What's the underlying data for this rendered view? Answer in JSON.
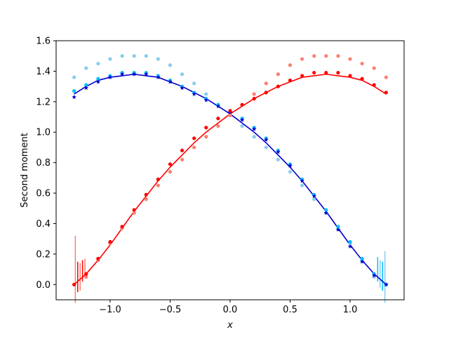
{
  "chart_data": {
    "type": "scatter",
    "title": "",
    "xlabel": "x",
    "ylabel": "Second moment",
    "xlim": [
      -1.45,
      1.45
    ],
    "ylim": [
      -0.1,
      1.6
    ],
    "xticks": [
      -1.0,
      -0.5,
      0.0,
      0.5,
      1.0
    ],
    "xtick_labels": [
      "−1.0",
      "−0.5",
      "0.0",
      "0.5",
      "1.0"
    ],
    "yticks": [
      0.0,
      0.2,
      0.4,
      0.6,
      0.8,
      1.0,
      1.2,
      1.4,
      1.6
    ],
    "ytick_labels": [
      "0.0",
      "0.2",
      "0.4",
      "0.6",
      "0.8",
      "1.0",
      "1.2",
      "1.4",
      "1.6"
    ],
    "grid": false,
    "legend": "none",
    "series": [
      {
        "color": "#87ceeb",
        "marker": "dot",
        "x": [
          -1.3,
          -1.2,
          -1.1,
          -1.0,
          -0.9,
          -0.8,
          -0.7,
          -0.6,
          -0.5,
          -0.4,
          -0.3,
          -0.2,
          -0.1,
          0.0,
          0.1,
          0.2,
          0.3,
          0.4,
          0.5,
          0.6,
          0.7,
          0.8,
          0.9,
          1.0,
          1.1,
          1.2,
          1.3
        ],
        "y": [
          1.36,
          1.42,
          1.45,
          1.48,
          1.5,
          1.5,
          1.5,
          1.48,
          1.44,
          1.38,
          1.32,
          1.25,
          1.18,
          1.11,
          1.04,
          0.97,
          0.9,
          0.82,
          0.74,
          0.65,
          0.56,
          0.47,
          0.37,
          0.27,
          0.16,
          0.05,
          0.0
        ]
      },
      {
        "color": "#00bfff",
        "marker": "dot",
        "x": [
          -1.3,
          -1.2,
          -1.1,
          -1.0,
          -0.9,
          -0.8,
          -0.7,
          -0.6,
          -0.5,
          -0.4,
          -0.3,
          -0.2,
          -0.1,
          0.0,
          0.1,
          0.2,
          0.3,
          0.4,
          0.5,
          0.6,
          0.7,
          0.8,
          0.9,
          1.0,
          1.1,
          1.2,
          1.3
        ],
        "y": [
          1.27,
          1.31,
          1.35,
          1.37,
          1.39,
          1.39,
          1.39,
          1.37,
          1.34,
          1.3,
          1.26,
          1.22,
          1.18,
          1.14,
          1.09,
          1.03,
          0.96,
          0.88,
          0.79,
          0.69,
          0.59,
          0.49,
          0.38,
          0.28,
          0.17,
          0.07,
          0.0
        ]
      },
      {
        "color": "#0000cd",
        "marker": "star",
        "x": [
          -1.3,
          -1.2,
          -1.1,
          -1.0,
          -0.9,
          -0.8,
          -0.7,
          -0.6,
          -0.5,
          -0.4,
          -0.3,
          -0.2,
          -0.1,
          0.0,
          0.1,
          0.2,
          0.3,
          0.4,
          0.5,
          0.6,
          0.7,
          0.8,
          0.9,
          1.0,
          1.1,
          1.2,
          1.3
        ],
        "y": [
          1.23,
          1.29,
          1.33,
          1.36,
          1.38,
          1.38,
          1.38,
          1.36,
          1.33,
          1.29,
          1.25,
          1.21,
          1.17,
          1.13,
          1.08,
          1.02,
          0.95,
          0.87,
          0.78,
          0.68,
          0.58,
          0.47,
          0.36,
          0.25,
          0.15,
          0.06,
          0.0
        ]
      },
      {
        "color": "#fa8072",
        "marker": "dot",
        "x": [
          -1.3,
          -1.2,
          -1.1,
          -1.0,
          -0.9,
          -0.8,
          -0.7,
          -0.6,
          -0.5,
          -0.4,
          -0.3,
          -0.2,
          -0.1,
          0.0,
          0.1,
          0.2,
          0.3,
          0.4,
          0.5,
          0.6,
          0.7,
          0.8,
          0.9,
          1.0,
          1.1,
          1.2,
          1.3
        ],
        "y": [
          0.0,
          0.05,
          0.16,
          0.27,
          0.37,
          0.47,
          0.56,
          0.65,
          0.74,
          0.82,
          0.9,
          0.97,
          1.04,
          1.11,
          1.18,
          1.25,
          1.32,
          1.38,
          1.44,
          1.48,
          1.5,
          1.5,
          1.5,
          1.48,
          1.45,
          1.42,
          1.36
        ]
      },
      {
        "color": "#ff0000",
        "marker": "dot",
        "x": [
          -1.3,
          -1.2,
          -1.1,
          -1.0,
          -0.9,
          -0.8,
          -0.7,
          -0.6,
          -0.5,
          -0.4,
          -0.3,
          -0.2,
          -0.1,
          0.0,
          0.1,
          0.2,
          0.3,
          0.4,
          0.5,
          0.6,
          0.7,
          0.8,
          0.9,
          1.0,
          1.1,
          1.2,
          1.3
        ],
        "y": [
          0.0,
          0.07,
          0.17,
          0.28,
          0.38,
          0.49,
          0.59,
          0.69,
          0.79,
          0.88,
          0.96,
          1.03,
          1.09,
          1.14,
          1.18,
          1.22,
          1.26,
          1.3,
          1.34,
          1.37,
          1.39,
          1.39,
          1.39,
          1.37,
          1.35,
          1.31,
          1.26
        ]
      }
    ],
    "fit_lines": [
      {
        "color": "#0000cd",
        "x": [
          -1.3,
          -1.2,
          -1.1,
          -1.0,
          -0.9,
          -0.8,
          -0.7,
          -0.6,
          -0.5,
          -0.4,
          -0.3,
          -0.2,
          -0.1,
          0.0,
          0.1,
          0.2,
          0.3,
          0.4,
          0.5,
          0.6,
          0.7,
          0.8,
          0.9,
          1.0,
          1.1,
          1.2,
          1.3
        ],
        "y": [
          1.25,
          1.3,
          1.34,
          1.36,
          1.37,
          1.38,
          1.37,
          1.36,
          1.33,
          1.3,
          1.26,
          1.22,
          1.17,
          1.12,
          1.06,
          1.0,
          0.93,
          0.85,
          0.77,
          0.68,
          0.58,
          0.48,
          0.37,
          0.26,
          0.16,
          0.07,
          0.0
        ]
      },
      {
        "color": "#ff0000",
        "x": [
          -1.3,
          -1.2,
          -1.1,
          -1.0,
          -0.9,
          -0.8,
          -0.7,
          -0.6,
          -0.5,
          -0.4,
          -0.3,
          -0.2,
          -0.1,
          0.0,
          0.1,
          0.2,
          0.3,
          0.4,
          0.5,
          0.6,
          0.7,
          0.8,
          0.9,
          1.0,
          1.1,
          1.2,
          1.3
        ],
        "y": [
          0.0,
          0.07,
          0.16,
          0.26,
          0.37,
          0.48,
          0.58,
          0.68,
          0.77,
          0.85,
          0.93,
          1.0,
          1.06,
          1.12,
          1.17,
          1.22,
          1.26,
          1.3,
          1.33,
          1.36,
          1.37,
          1.38,
          1.37,
          1.36,
          1.34,
          1.3,
          1.25
        ]
      }
    ],
    "error_bars": [
      {
        "color": "#fa8072",
        "x": -1.29,
        "ylow": -0.12,
        "yhigh": 0.32
      },
      {
        "color": "#ff0000",
        "x": -1.27,
        "ylow": -0.05,
        "yhigh": 0.15
      },
      {
        "color": "#fa8072",
        "x": -1.25,
        "ylow": -0.04,
        "yhigh": 0.14
      },
      {
        "color": "#ff0000",
        "x": -1.23,
        "ylow": 0.02,
        "yhigh": 0.16
      },
      {
        "color": "#fa8072",
        "x": -1.21,
        "ylow": 0.05,
        "yhigh": 0.17
      },
      {
        "color": "#00bfff",
        "x": 1.23,
        "ylow": 0.02,
        "yhigh": 0.18
      },
      {
        "color": "#87ceeb",
        "x": 1.25,
        "ylow": -0.02,
        "yhigh": 0.16
      },
      {
        "color": "#00bfff",
        "x": 1.27,
        "ylow": -0.04,
        "yhigh": 0.15
      },
      {
        "color": "#87ceeb",
        "x": 1.29,
        "ylow": -0.12,
        "yhigh": 0.22
      }
    ]
  }
}
